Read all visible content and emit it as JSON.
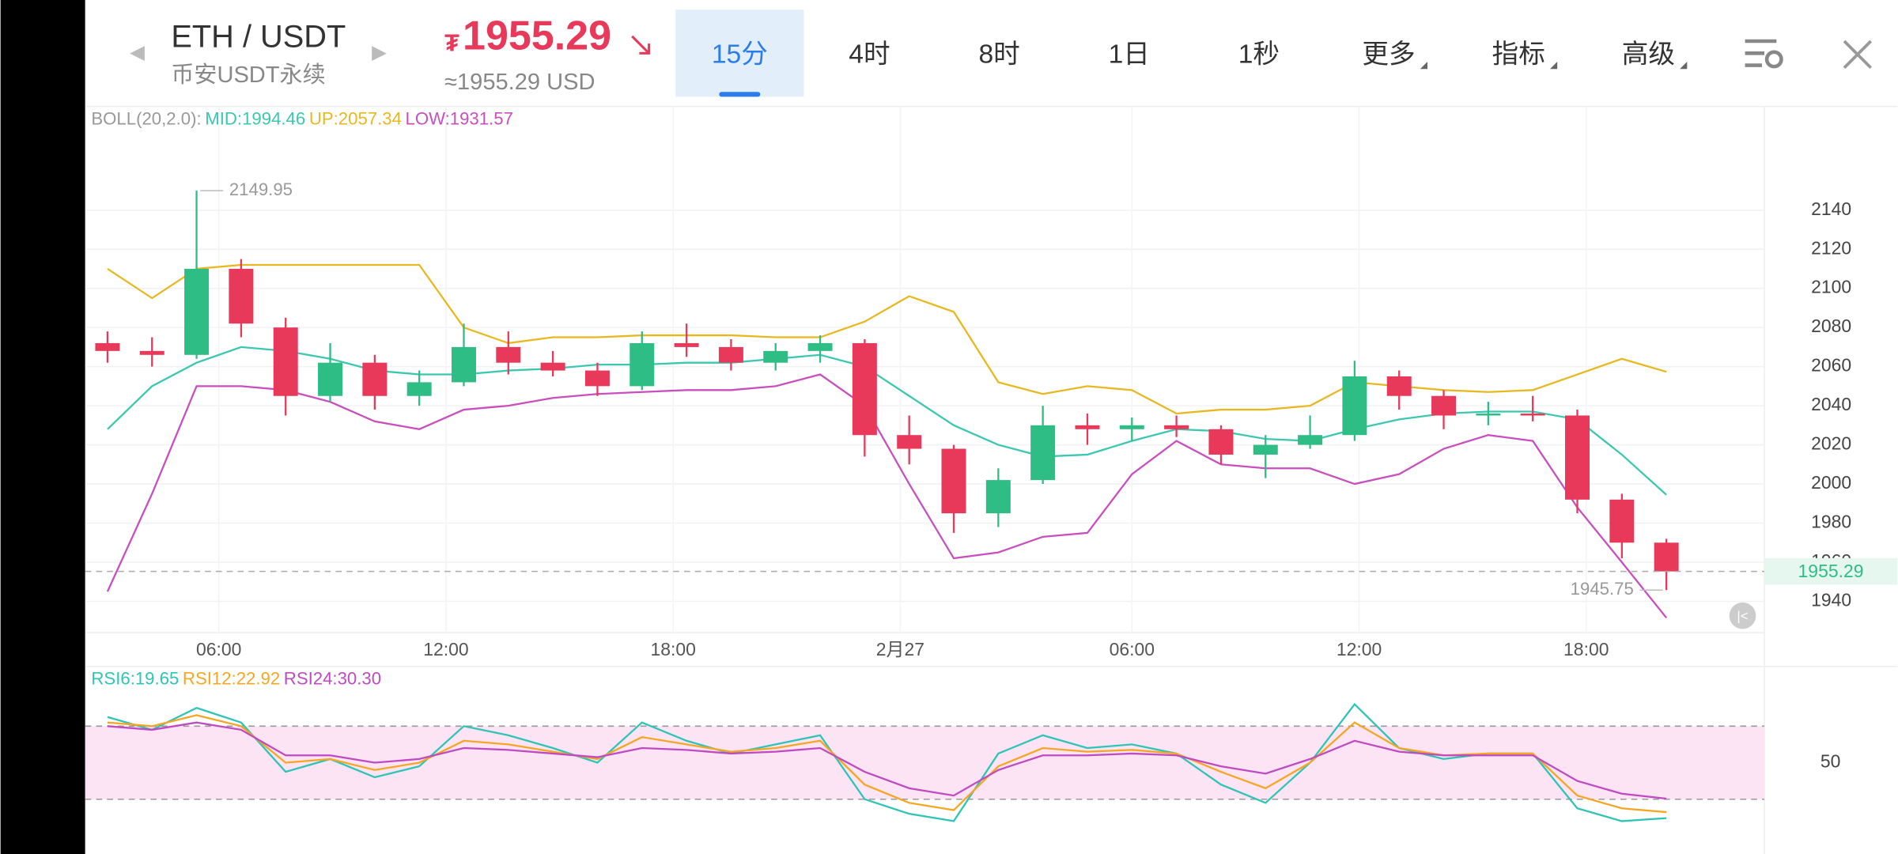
{
  "header": {
    "pair": "ETH / USDT",
    "market": "币安USDT永续",
    "price_symbol": "₮",
    "usd_approx": "≈1955.29 USD",
    "tabs": [
      {
        "label": "15分"
      },
      {
        "label": "4时"
      },
      {
        "label": "8时"
      },
      {
        "label": "1日"
      },
      {
        "label": "1秒"
      },
      {
        "label": "更多",
        "menu": true
      },
      {
        "label": "指标",
        "menu": true
      },
      {
        "label": "高级",
        "menu": true
      }
    ],
    "active_tab": 0
  },
  "chart_data": {
    "type": "candlestick",
    "indicator": "BOLL(20,2.0):",
    "candles": [
      [
        2072,
        2078,
        2062,
        2068
      ],
      [
        2068,
        2075,
        2060,
        2066
      ],
      [
        2066,
        2149.95,
        2064,
        2110
      ],
      [
        2110,
        2115,
        2075,
        2082
      ],
      [
        2080,
        2085,
        2035,
        2045
      ],
      [
        2045,
        2072,
        2042,
        2062
      ],
      [
        2062,
        2066,
        2038,
        2045
      ],
      [
        2045,
        2058,
        2040,
        2052
      ],
      [
        2052,
        2082,
        2050,
        2070
      ],
      [
        2070,
        2078,
        2056,
        2062
      ],
      [
        2062,
        2068,
        2055,
        2058
      ],
      [
        2058,
        2062,
        2045,
        2050
      ],
      [
        2050,
        2078,
        2048,
        2072
      ],
      [
        2072,
        2082,
        2065,
        2070
      ],
      [
        2070,
        2074,
        2058,
        2062
      ],
      [
        2062,
        2072,
        2058,
        2068
      ],
      [
        2068,
        2076,
        2062,
        2072
      ],
      [
        2072,
        2074,
        2014,
        2025
      ],
      [
        2025,
        2035,
        2010,
        2018
      ],
      [
        2018,
        2020,
        1975,
        1985
      ],
      [
        1985,
        2008,
        1978,
        2002
      ],
      [
        2002,
        2040,
        2000,
        2030
      ],
      [
        2030,
        2036,
        2020,
        2028
      ],
      [
        2028,
        2034,
        2022,
        2030
      ],
      [
        2030,
        2035,
        2024,
        2028
      ],
      [
        2028,
        2030,
        2010,
        2015
      ],
      [
        2015,
        2025,
        2003,
        2020
      ],
      [
        2020,
        2035,
        2018,
        2025
      ],
      [
        2025,
        2063,
        2022,
        2055
      ],
      [
        2055,
        2058,
        2038,
        2045
      ],
      [
        2045,
        2048,
        2028,
        2035
      ],
      [
        2035,
        2042,
        2030,
        2036
      ],
      [
        2036,
        2045,
        2032,
        2035
      ],
      [
        2035,
        2038,
        1985,
        1992
      ],
      [
        1992,
        1995,
        1962,
        1970
      ],
      [
        1970,
        1972,
        1945.75,
        1955.29
      ]
    ],
    "up_color": "#2ebd85",
    "down_color": "#e8395a",
    "series": [
      {
        "name": "MID",
        "legend_label": "MID:1994.46",
        "color": "#3cc8b0",
        "values": [
          2028,
          2050,
          2062,
          2070,
          2068,
          2064,
          2058,
          2056,
          2056,
          2058,
          2059,
          2061,
          2061,
          2062,
          2062,
          2064,
          2066,
          2060,
          2045,
          2030,
          2020,
          2014,
          2015,
          2022,
          2028,
          2027,
          2023,
          2022,
          2028,
          2033,
          2036,
          2037,
          2037,
          2033,
          2015,
          1994.46
        ]
      },
      {
        "name": "UP",
        "legend_label": "UP:2057.34",
        "color": "#e8b820",
        "values": [
          2110,
          2095,
          2110,
          2112,
          2112,
          2112,
          2112,
          2112,
          2080,
          2072,
          2075,
          2075,
          2076,
          2076,
          2076,
          2075,
          2075,
          2083,
          2096,
          2088,
          2052,
          2046,
          2050,
          2048,
          2036,
          2038,
          2038,
          2040,
          2052,
          2050,
          2048,
          2047,
          2048,
          2056,
          2064,
          2057.34
        ]
      },
      {
        "name": "LOW",
        "legend_label": "LOW:1931.57",
        "color": "#c94fbf",
        "values": [
          1945,
          1995,
          2050,
          2050,
          2048,
          2042,
          2032,
          2028,
          2038,
          2040,
          2044,
          2046,
          2047,
          2048,
          2048,
          2050,
          2056,
          2040,
          2000,
          1962,
          1965,
          1973,
          1975,
          2005,
          2022,
          2010,
          2008,
          2008,
          2000,
          2005,
          2018,
          2025,
          2022,
          1988,
          1960,
          1931.57
        ]
      }
    ],
    "xlim": [
      -0.5,
      37.2
    ],
    "xticks": [
      {
        "value": 2.5,
        "label": "06:00"
      },
      {
        "value": 7.6,
        "label": "12:00"
      },
      {
        "value": 12.7,
        "label": "18:00"
      },
      {
        "value": 17.8,
        "label": "2月27"
      },
      {
        "value": 23,
        "label": "06:00"
      },
      {
        "value": 28.1,
        "label": "12:00"
      },
      {
        "value": 33.2,
        "label": "18:00"
      }
    ],
    "ylim": [
      1924,
      2193
    ],
    "yticks": [
      1940,
      1960,
      1980,
      2000,
      2020,
      2040,
      2060,
      2080,
      2100,
      2120,
      2140
    ],
    "grid": true,
    "rsi": {
      "series": [
        {
          "name": "RSI6",
          "legend_label": "RSI6:19.65",
          "color": "#2ec4b6",
          "values": [
            75,
            68,
            80,
            72,
            45,
            52,
            42,
            48,
            70,
            65,
            58,
            50,
            72,
            62,
            55,
            60,
            65,
            30,
            22,
            18,
            55,
            65,
            58,
            60,
            55,
            38,
            28,
            50,
            82,
            58,
            52,
            55,
            55,
            25,
            18,
            19.65
          ]
        },
        {
          "name": "RSI12",
          "legend_label": "RSI12:22.92",
          "color": "#f5a623",
          "values": [
            72,
            70,
            76,
            70,
            50,
            52,
            46,
            50,
            62,
            60,
            56,
            52,
            64,
            60,
            56,
            58,
            62,
            38,
            28,
            24,
            48,
            58,
            56,
            57,
            55,
            45,
            36,
            50,
            72,
            58,
            54,
            55,
            55,
            32,
            25,
            22.92
          ]
        },
        {
          "name": "RSI24",
          "legend_label": "RSI24:30.30",
          "color": "#c04bc0",
          "values": [
            70,
            68,
            72,
            68,
            54,
            54,
            50,
            52,
            58,
            57,
            55,
            53,
            58,
            57,
            55,
            56,
            58,
            45,
            36,
            32,
            46,
            54,
            54,
            55,
            54,
            48,
            44,
            52,
            62,
            56,
            54,
            54,
            54,
            40,
            33,
            30.3
          ]
        }
      ],
      "ylim": [
        0,
        100
      ],
      "yticks": [
        50
      ],
      "band": [
        30,
        70
      ]
    }
  }
}
